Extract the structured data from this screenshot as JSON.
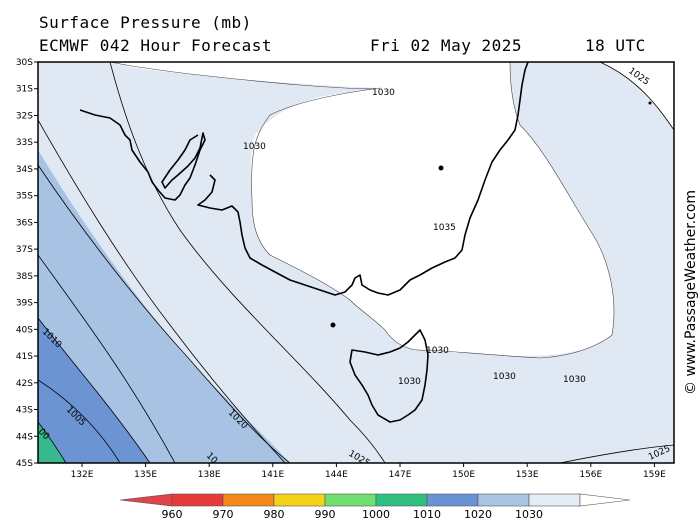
{
  "header": {
    "title": "Surface Pressure (mb)",
    "model": "ECMWF 042 Hour Forecast",
    "date": "Fri 02 May 2025",
    "time": "18 UTC"
  },
  "credit": "© www.PassageWeather.com",
  "map": {
    "lat_labels": [
      "30S",
      "31S",
      "32S",
      "33S",
      "34S",
      "35S",
      "36S",
      "37S",
      "38S",
      "39S",
      "40S",
      "41S",
      "42S",
      "43S",
      "44S",
      "45S"
    ],
    "lon_labels": [
      "132E",
      "135E",
      "138E",
      "141E",
      "144E",
      "147E",
      "150E",
      "153E",
      "156E",
      "159E"
    ],
    "isobar_labels": {
      "l1035": "1035",
      "l1030a": "1030",
      "l1030b": "1030",
      "l1030c": "1030",
      "l1030d": "1030",
      "l1030e": "1030",
      "l1030f": "1030",
      "l1025a": "1025",
      "l1025b": "1025",
      "l1025c": "1025",
      "l1020a": "1020",
      "l1020b": "10",
      "l1010": "1010",
      "l1005": "1005",
      "l1000": "00"
    },
    "colors": {
      "c1030": "#ffffff",
      "c1020": "#e0e8f4",
      "c1010": "#a7c2e2",
      "c1000": "#6c93d2",
      "c990": "#36b98f",
      "land_outline": "#000000"
    }
  },
  "colorbar": {
    "labels": [
      "960",
      "970",
      "980",
      "990",
      "1000",
      "1010",
      "1020",
      "1030"
    ],
    "colors": [
      "#e83a3a",
      "#f58a1a",
      "#f5d31a",
      "#6fe06f",
      "#2fc07f",
      "#6a93d6",
      "#a8c3e3",
      "#e3ebf6"
    ]
  }
}
